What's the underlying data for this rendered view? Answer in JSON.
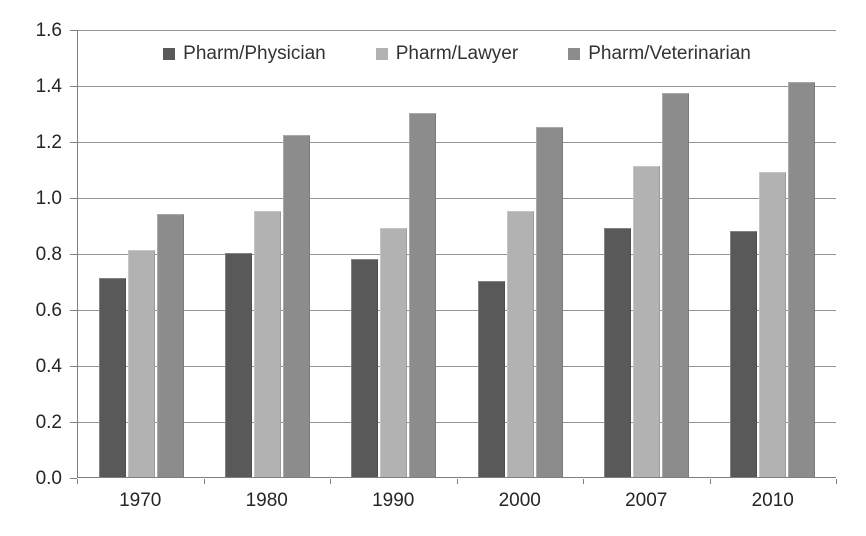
{
  "chart_data": {
    "type": "bar",
    "title": "",
    "xlabel": "",
    "ylabel": "",
    "categories": [
      "1970",
      "1980",
      "1990",
      "2000",
      "2007",
      "2010"
    ],
    "series": [
      {
        "name": "Pharm/Physician",
        "color": "#595959",
        "values": [
          0.71,
          0.8,
          0.78,
          0.7,
          0.89,
          0.88
        ]
      },
      {
        "name": "Pharm/Lawyer",
        "color": "#b2b2b2",
        "values": [
          0.81,
          0.95,
          0.89,
          0.95,
          1.11,
          1.09
        ]
      },
      {
        "name": "Pharm/Veterinarian",
        "color": "#8c8c8c",
        "values": [
          0.94,
          1.22,
          1.3,
          1.25,
          1.37,
          1.41
        ]
      }
    ],
    "ylim": [
      0.0,
      1.6
    ],
    "ytick_step": 0.2,
    "ytick_labels": [
      "0.0",
      "0.2",
      "0.4",
      "0.6",
      "0.8",
      "1.0",
      "1.2",
      "1.4",
      "1.6"
    ],
    "grid": true,
    "legend_position": "top-center"
  },
  "colors": {
    "gridline": "#949494",
    "axis": "#7f7f7f",
    "text": "#262626",
    "background": "#ffffff"
  }
}
